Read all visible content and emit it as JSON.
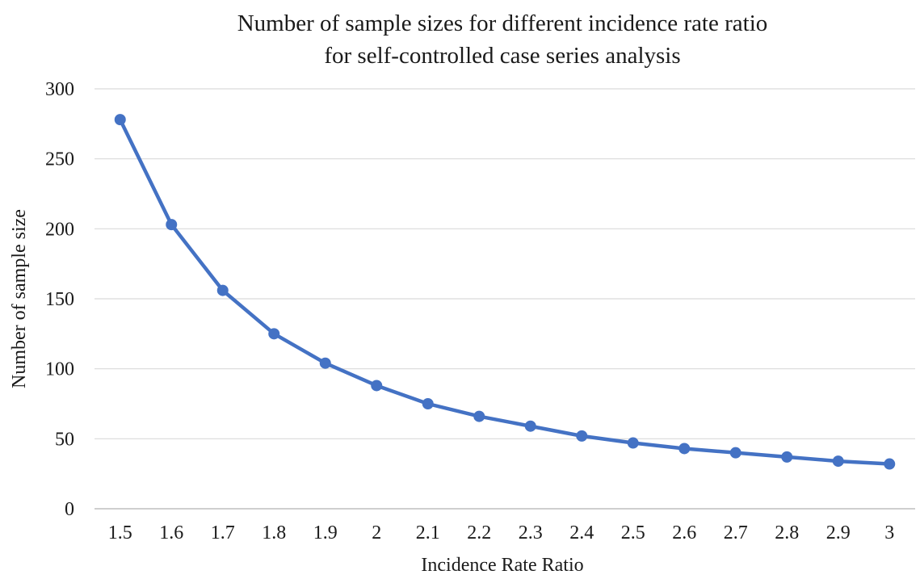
{
  "chart_data": {
    "type": "line",
    "title": [
      "Number of sample sizes for different incidence rate ratio",
      "for self-controlled case series analysis"
    ],
    "xlabel": "Incidence Rate Ratio",
    "ylabel": "Number of sample size",
    "categories": [
      "1.5",
      "1.6",
      "1.7",
      "1.8",
      "1.9",
      "2",
      "2.1",
      "2.2",
      "2.3",
      "2.4",
      "2.5",
      "2.6",
      "2.7",
      "2.8",
      "2.9",
      "3"
    ],
    "series": [
      {
        "values": [
          278,
          203,
          156,
          125,
          104,
          88,
          75,
          66,
          59,
          52,
          47,
          43,
          40,
          37,
          34,
          32
        ]
      }
    ],
    "ylim": [
      0,
      300
    ],
    "yticks": [
      0,
      50,
      100,
      150,
      200,
      250,
      300
    ],
    "grid": "horizontal",
    "legend": "none",
    "colors": {
      "series": "#4472c4",
      "grid": "#d9d9d9"
    }
  }
}
